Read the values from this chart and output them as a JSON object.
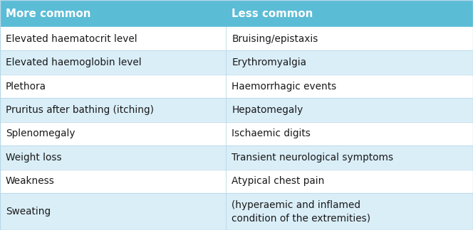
{
  "header": [
    "More common",
    "Less common"
  ],
  "rows": [
    [
      "Elevated haematocrit level",
      "Bruising/epistaxis"
    ],
    [
      "Elevated haemoglobin level",
      "Erythromyalgia"
    ],
    [
      "Plethora",
      "Haemorrhagic events"
    ],
    [
      "Pruritus after bathing (itching)",
      "Hepatomegaly"
    ],
    [
      "Splenomegaly",
      "Ischaemic digits"
    ],
    [
      "Weight loss",
      "Transient neurological symptoms"
    ],
    [
      "Weakness",
      "Atypical chest pain"
    ],
    [
      "Sweating",
      "(hyperaemic and inflamed\ncondition of the extremities)"
    ]
  ],
  "header_bg": "#5bbcd6",
  "row_bg_even": "#daeef8",
  "row_bg_odd": "#ffffff",
  "header_text_color": "#ffffff",
  "row_text_color": "#1a1a1a",
  "col_split": 0.478,
  "fig_width": 6.64,
  "fig_height": 3.24,
  "font_size": 9.8,
  "header_font_size": 10.8
}
